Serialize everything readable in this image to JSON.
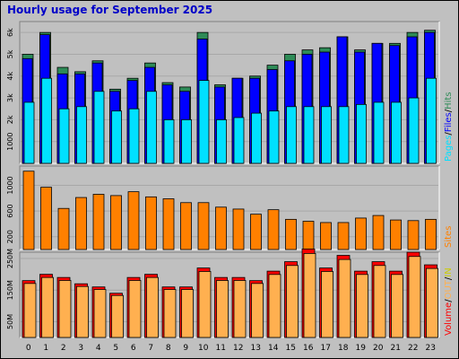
{
  "page": {
    "title": "Hourly usage for September 2025"
  },
  "colors": {
    "background": "#c0c0c0",
    "hits": "#2e8b57",
    "files": "#0000ff",
    "pages": "#00e0ff",
    "sites": "#ff8000",
    "kbytes": "#ff0000",
    "visits_like": "#ffb050",
    "title": "#0000c8"
  },
  "chart_data": [
    {
      "type": "bar",
      "title": "Hourly usage for September 2025",
      "categories": [
        "0",
        "1",
        "2",
        "3",
        "4",
        "5",
        "6",
        "7",
        "8",
        "9",
        "10",
        "11",
        "12",
        "13",
        "14",
        "15",
        "16",
        "17",
        "18",
        "19",
        "20",
        "21",
        "22",
        "23"
      ],
      "ylim": [
        0,
        6500
      ],
      "y_ticks": [
        "1000",
        "2k",
        "3k",
        "4k",
        "5k",
        "6k"
      ],
      "legend": [
        {
          "label": "Pages",
          "color": "#00e0ff"
        },
        {
          "label": "/",
          "color": "#000000"
        },
        {
          "label": "Files",
          "color": "#0000ff"
        },
        {
          "label": "/",
          "color": "#000000"
        },
        {
          "label": "Hits",
          "color": "#2e8b57"
        }
      ],
      "series": [
        {
          "name": "Hits",
          "values": [
            5000,
            6000,
            4400,
            4200,
            4700,
            3400,
            3900,
            4600,
            3700,
            3500,
            6000,
            3600,
            3900,
            4000,
            4500,
            5000,
            5200,
            5300,
            5800,
            5200,
            5500,
            5500,
            6000,
            6100
          ]
        },
        {
          "name": "Files",
          "values": [
            4800,
            5900,
            4100,
            4100,
            4600,
            3300,
            3800,
            4400,
            3600,
            3300,
            5700,
            3500,
            3900,
            3900,
            4300,
            4700,
            5000,
            5100,
            5800,
            5100,
            5500,
            5400,
            5800,
            6000
          ]
        },
        {
          "name": "Pages",
          "values": [
            2800,
            3900,
            2500,
            2600,
            3300,
            2400,
            2500,
            3300,
            2000,
            2000,
            3800,
            2000,
            2100,
            2300,
            2400,
            2600,
            2600,
            2600,
            2600,
            2700,
            2800,
            2800,
            3000,
            3900
          ]
        }
      ]
    },
    {
      "type": "bar",
      "categories": [
        "0",
        "1",
        "2",
        "3",
        "4",
        "5",
        "6",
        "7",
        "8",
        "9",
        "10",
        "11",
        "12",
        "13",
        "14",
        "15",
        "16",
        "17",
        "18",
        "19",
        "20",
        "21",
        "22",
        "23"
      ],
      "ylim": [
        0,
        1300
      ],
      "y_ticks": [
        "200",
        "600",
        "1000"
      ],
      "legend": [
        {
          "label": "Sites",
          "color": "#ff8000"
        }
      ],
      "series": [
        {
          "name": "Sites",
          "values": [
            1220,
            970,
            640,
            810,
            860,
            840,
            900,
            820,
            790,
            730,
            730,
            660,
            630,
            550,
            620,
            470,
            440,
            420,
            420,
            490,
            530,
            460,
            450,
            470
          ]
        }
      ]
    },
    {
      "type": "bar",
      "categories": [
        "0",
        "1",
        "2",
        "3",
        "4",
        "5",
        "6",
        "7",
        "8",
        "9",
        "10",
        "11",
        "12",
        "13",
        "14",
        "15",
        "16",
        "17",
        "18",
        "19",
        "20",
        "21",
        "22",
        "23"
      ],
      "ylim": [
        0,
        2700
      ],
      "y_ticks": [
        "50M",
        "150M",
        "250M"
      ],
      "legend": [
        {
          "label": "Volume",
          "color": "#ff0000"
        },
        {
          "label": "/",
          "color": "#000000"
        },
        {
          "label": "OUT",
          "color": "#ffb050"
        },
        {
          "label": "/",
          "color": "#000000"
        },
        {
          "label": "IN",
          "color": "#cccc00"
        }
      ],
      "series": [
        {
          "name": "Volume",
          "values": [
            1800,
            2000,
            1900,
            1700,
            1600,
            1400,
            1900,
            2000,
            1600,
            1600,
            2200,
            1900,
            1900,
            1800,
            2100,
            2400,
            2800,
            2200,
            2600,
            2100,
            2400,
            2100,
            2700,
            2300
          ]
        }
      ]
    }
  ]
}
